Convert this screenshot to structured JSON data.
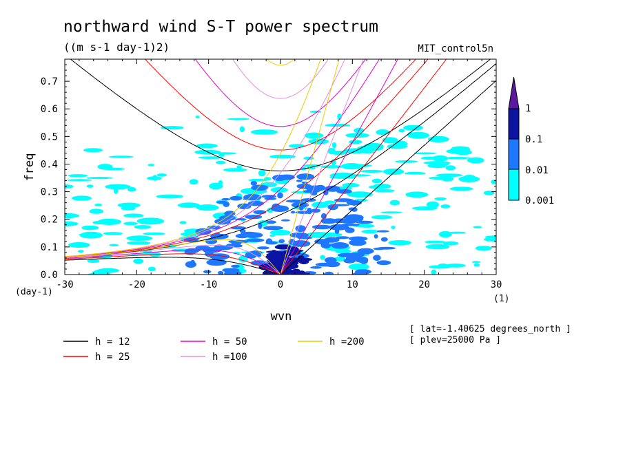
{
  "chart_data": {
    "type": "heatmap",
    "title": "northward wind S-T power spectrum",
    "subtitle": "((m s-1 day-1)2)",
    "dataset": "MIT_control5n",
    "xlabel": "wvn",
    "ylabel": "freq",
    "x_unit": "(1)",
    "y_unit": "(day-1)",
    "xlim": [
      -30,
      30
    ],
    "ylim": [
      0,
      0.78
    ],
    "x_ticks": [
      -30,
      -20,
      -10,
      0,
      10,
      20,
      30
    ],
    "y_ticks": [
      0,
      0.1,
      0.2,
      0.3,
      0.4,
      0.5,
      0.6,
      0.7
    ],
    "x_tick_labels": [
      "-30",
      "-20",
      "-10",
      "0",
      "10",
      "20",
      "30"
    ],
    "y_tick_labels": [
      "0.0",
      "0.1",
      "0.2",
      "0.3",
      "0.4",
      "0.5",
      "0.6",
      "0.7"
    ],
    "colorbar": {
      "levels": [
        0.001,
        0.01,
        0.1,
        1
      ],
      "labels": [
        "0.001",
        "0.01",
        "0.1",
        "1"
      ],
      "colors": [
        "#00ffff",
        "#1e78ff",
        "#0a14a0",
        "#5a1aa0"
      ]
    },
    "contour_regions": [
      {
        "level": 0.001,
        "kmin": -30,
        "kmax": 30,
        "fmin": 0.0,
        "fmax": 0.62,
        "x0": 0,
        "y0": 0.22,
        "rx": 33,
        "ry": 0.38
      },
      {
        "level": 0.01,
        "kmin": -15,
        "kmax": 15,
        "fmin": 0.0,
        "fmax": 0.38,
        "x0": 1,
        "y0": 0.08,
        "rx": 14,
        "ry": 0.28
      },
      {
        "level": 0.1,
        "kmin": -3,
        "kmax": 4,
        "fmin": 0.0,
        "fmax": 0.12,
        "x0": 0.8,
        "y0": 0.0,
        "rx": 3.5,
        "ry": 0.1
      }
    ],
    "dispersion_curves": [
      {
        "name": "h = 12",
        "h": 12,
        "color": "#000000"
      },
      {
        "name": "h = 25",
        "h": 25,
        "color": "#ff0000"
      },
      {
        "name": "h = 50",
        "h": 50,
        "color": "#e000c8"
      },
      {
        "name": "h =100",
        "h": 100,
        "color": "#e090e0"
      },
      {
        "name": "h =200",
        "h": 200,
        "color": "#f0c800"
      }
    ],
    "grid": false,
    "legend_position": "bottom-left"
  },
  "annotations": {
    "lat": "[ lat=-1.40625 degrees_north ]",
    "plev": "[ plev=25000 Pa ]"
  }
}
